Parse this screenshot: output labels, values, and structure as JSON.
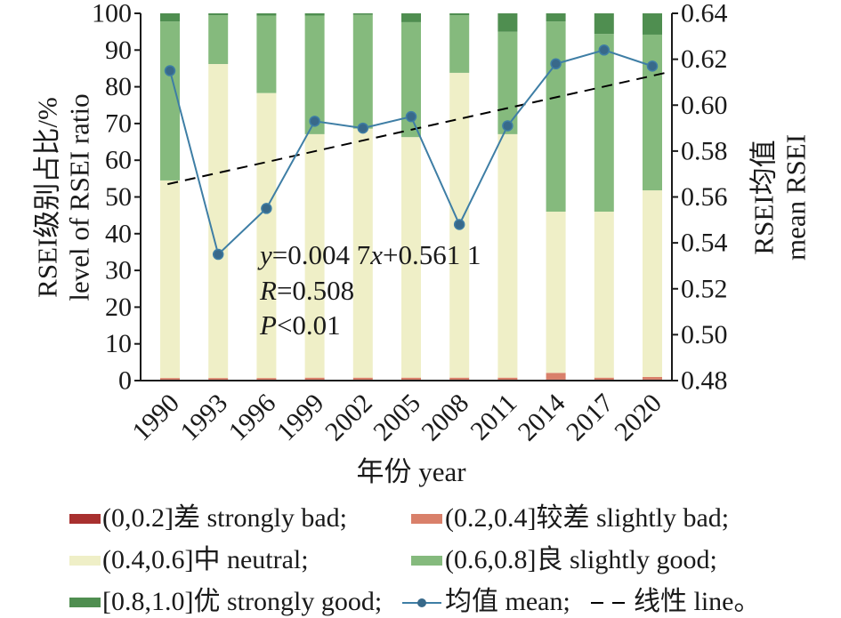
{
  "chart_data": {
    "type": "bar",
    "stacked": true,
    "categories": [
      "1990",
      "1993",
      "1996",
      "1999",
      "2002",
      "2005",
      "2008",
      "2011",
      "2014",
      "2017",
      "2020"
    ],
    "xlabel": "年份 year",
    "ylabel_left": [
      "RSEI级别占比/%",
      "level of RSEI ratio"
    ],
    "ylabel_right": [
      "RSEI均值",
      "mean RSEI"
    ],
    "ylim_left": [
      0,
      100
    ],
    "ylim_right": [
      0.48,
      0.64
    ],
    "y_left_ticks": [
      "0",
      "10",
      "20",
      "30",
      "40",
      "50",
      "60",
      "70",
      "80",
      "90",
      "100"
    ],
    "y_right_ticks": [
      "0.48",
      "0.50",
      "0.52",
      "0.54",
      "0.56",
      "0.58",
      "0.60",
      "0.62",
      "0.64"
    ],
    "grid": false,
    "legend_placement": "bottom",
    "series": [
      {
        "name": "(0,0.2]差 strongly bad;",
        "type": "bar",
        "axis": "left",
        "color": "#a8302f",
        "values": [
          0.2,
          0.2,
          0.2,
          0.2,
          0.2,
          0.2,
          0.2,
          0.2,
          0.3,
          0.2,
          0.3
        ]
      },
      {
        "name": "(0.2,0.4]较差 slightly bad;",
        "type": "bar",
        "axis": "left",
        "color": "#d9806a",
        "values": [
          0.5,
          0.5,
          0.5,
          0.6,
          0.6,
          0.6,
          0.6,
          0.6,
          1.8,
          0.6,
          0.7
        ]
      },
      {
        "name": "(0.4,0.6]中 neutral;",
        "type": "bar",
        "axis": "left",
        "color": "#efefc7",
        "values": [
          53.8,
          85.5,
          77.6,
          66.3,
          67.8,
          65.5,
          83.0,
          66.3,
          43.9,
          45.2,
          50.8
        ]
      },
      {
        "name": "(0.6,0.8]良 slightly good;",
        "type": "bar",
        "axis": "left",
        "color": "#85ba7d",
        "values": [
          43.3,
          13.3,
          21.1,
          32.3,
          31.0,
          31.3,
          15.7,
          27.9,
          51.8,
          48.4,
          42.4
        ]
      },
      {
        "name": "[0.8,1.0]优 strongly good;",
        "type": "bar",
        "axis": "left",
        "color": "#4f8e50",
        "values": [
          2.2,
          0.5,
          0.6,
          0.6,
          0.4,
          2.4,
          0.5,
          5.0,
          2.2,
          5.6,
          5.8
        ]
      },
      {
        "name": "均值 mean;",
        "type": "line",
        "axis": "right",
        "color": "#3e7ea5",
        "marker_color": "#38698a",
        "values": [
          0.615,
          0.535,
          0.555,
          0.593,
          0.59,
          0.595,
          0.548,
          0.591,
          0.618,
          0.624,
          0.617
        ]
      }
    ],
    "trend": {
      "name": "线性 line。",
      "type": "line",
      "axis": "right",
      "slope": 0.0047,
      "intercept": 0.5611,
      "color": "#000000",
      "dashed": true
    },
    "annotation": [
      "y=0.004 7x+0.561 1",
      "R=0.508",
      "P<0.01"
    ]
  }
}
